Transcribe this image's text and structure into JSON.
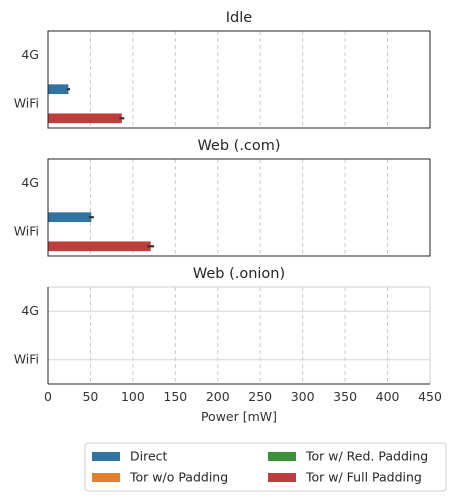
{
  "chart_data": {
    "type": "bar",
    "orientation": "horizontal",
    "xlabel": "Power [mW]",
    "xlim": [
      0,
      450
    ],
    "xticks": [
      0,
      50,
      100,
      150,
      200,
      250,
      300,
      350,
      400,
      450
    ],
    "categories": [
      "4G",
      "WiFi"
    ],
    "grid": "vertical dashed",
    "legend_position": "bottom",
    "series_names": [
      "Direct",
      "Tor w/o Padding",
      "Tor w/ Red. Padding",
      "Tor w/ Full Padding"
    ],
    "colors": {
      "Direct": "#3274a1",
      "Tor w/o Padding": "#e1812c",
      "Tor w/ Red. Padding": "#3a923a",
      "Tor w/ Full Padding": "#c03d3e",
      "errorbar": "#333333"
    },
    "panels": [
      {
        "title": "Idle",
        "frame": "boxed",
        "series": [
          {
            "name": "Direct",
            "values": [
              null,
              24
            ],
            "error": [
              null,
              2
            ]
          },
          {
            "name": "Tor w/o Padding",
            "values": [
              null,
              null
            ],
            "error": [
              null,
              null
            ]
          },
          {
            "name": "Tor w/ Red. Padding",
            "values": [
              null,
              null
            ],
            "error": [
              null,
              null
            ]
          },
          {
            "name": "Tor w/ Full Padding",
            "values": [
              null,
              87
            ],
            "error": [
              null,
              3
            ]
          }
        ]
      },
      {
        "title": "Web (.com)",
        "frame": "boxed",
        "series": [
          {
            "name": "Direct",
            "values": [
              null,
              51
            ],
            "error": [
              null,
              3
            ]
          },
          {
            "name": "Tor w/o Padding",
            "values": [
              null,
              null
            ],
            "error": [
              null,
              null
            ]
          },
          {
            "name": "Tor w/ Red. Padding",
            "values": [
              null,
              null
            ],
            "error": [
              null,
              null
            ]
          },
          {
            "name": "Tor w/ Full Padding",
            "values": [
              null,
              121
            ],
            "error": [
              null,
              4
            ]
          }
        ]
      },
      {
        "title": "Web (.onion)",
        "frame": "open",
        "series": [
          {
            "name": "Direct",
            "values": [
              null,
              null
            ],
            "error": [
              null,
              null
            ]
          },
          {
            "name": "Tor w/o Padding",
            "values": [
              null,
              null
            ],
            "error": [
              null,
              null
            ]
          },
          {
            "name": "Tor w/ Red. Padding",
            "values": [
              null,
              null
            ],
            "error": [
              null,
              null
            ]
          },
          {
            "name": "Tor w/ Full Padding",
            "values": [
              null,
              null
            ],
            "error": [
              null,
              null
            ]
          }
        ]
      }
    ]
  }
}
